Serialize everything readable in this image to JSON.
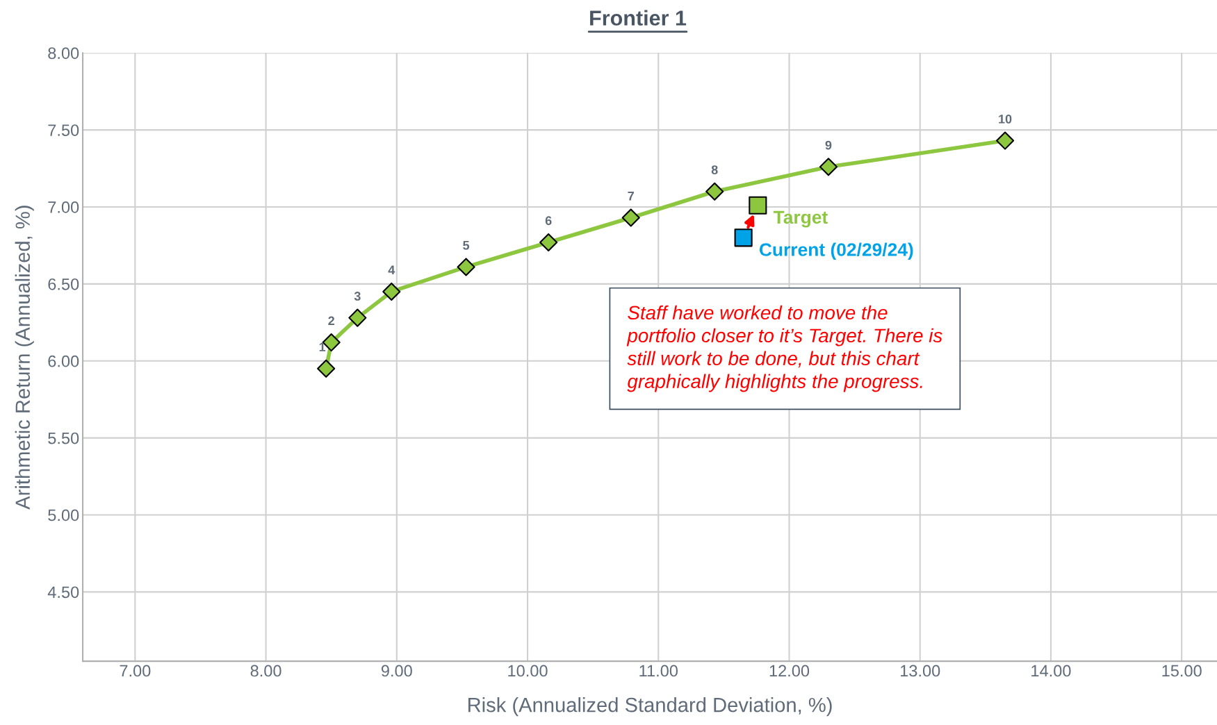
{
  "chart_data": {
    "type": "line",
    "title": "Frontier 1",
    "xlabel": "Risk (Annualized Standard Deviation, %)",
    "ylabel": "Arithmetic Return (Annualized, %)",
    "xlim": [
      6.6,
      15.27
    ],
    "xticks": [
      {
        "value": 7,
        "label": "7.00"
      },
      {
        "value": 8,
        "label": "8.00"
      },
      {
        "value": 9,
        "label": "9.00"
      },
      {
        "value": 10,
        "label": "10.00"
      },
      {
        "value": 11,
        "label": "11.00"
      },
      {
        "value": 12,
        "label": "12.00"
      },
      {
        "value": 13,
        "label": "13.00"
      },
      {
        "value": 14,
        "label": "14.00"
      },
      {
        "value": 15,
        "label": "15.00"
      }
    ],
    "ylim": [
      4.05,
      8.0
    ],
    "yticks": [
      {
        "value": 4.5,
        "label": "4.50"
      },
      {
        "value": 5,
        "label": "5.00"
      },
      {
        "value": 5.5,
        "label": "5.50"
      },
      {
        "value": 6,
        "label": "6.00"
      },
      {
        "value": 6.5,
        "label": "6.50"
      },
      {
        "value": 7,
        "label": "7.00"
      },
      {
        "value": 7.5,
        "label": "7.50"
      },
      {
        "value": 8,
        "label": "8.00"
      }
    ],
    "grid": true,
    "legend": false,
    "series": [
      {
        "marker": "diamond",
        "color": "#8dc63f",
        "x": [
          8.46,
          8.5,
          8.7,
          8.96,
          9.53,
          10.16,
          10.79,
          11.43,
          12.3,
          13.65
        ],
        "values": [
          5.95,
          6.12,
          6.28,
          6.45,
          6.61,
          6.77,
          6.93,
          7.1,
          7.26,
          7.43
        ]
      },
      {
        "type": "scatter",
        "marker": "square",
        "name": "Target",
        "color": "#8dc63f",
        "x": [
          11.76
        ],
        "values": [
          7.01
        ]
      },
      {
        "type": "scatter",
        "marker": "square",
        "name": "Current (02/29/24)",
        "color": "#00a2e8",
        "x": [
          11.65
        ],
        "values": [
          6.8
        ]
      }
    ],
    "annotations": [
      {
        "text": "1",
        "x": 8.46,
        "y": 5.95
      },
      {
        "text": "2",
        "x": 8.5,
        "y": 6.12
      },
      {
        "text": "3",
        "x": 8.7,
        "y": 6.28
      },
      {
        "text": "4",
        "x": 8.96,
        "y": 6.45
      },
      {
        "text": "5",
        "x": 9.53,
        "y": 6.61
      },
      {
        "text": "6",
        "x": 10.16,
        "y": 6.77
      },
      {
        "text": "7",
        "x": 10.79,
        "y": 6.93
      },
      {
        "text": "8",
        "x": 11.43,
        "y": 7.1
      },
      {
        "text": "9",
        "x": 12.3,
        "y": 7.26
      },
      {
        "text": "10",
        "x": 13.65,
        "y": 7.43
      },
      "Staff have worked to move the portfolio closer to it’s Target. There is still work to be done, but this chart graphically highlights the progress."
    ]
  }
}
